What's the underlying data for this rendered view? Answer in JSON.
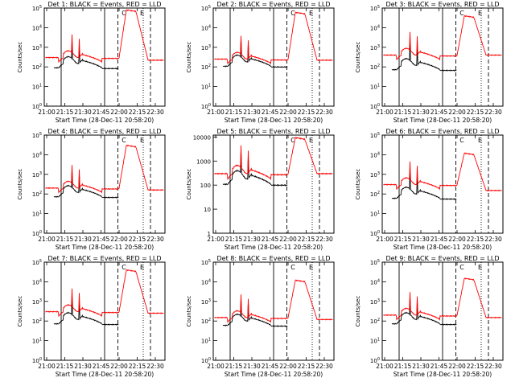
{
  "chart_data": [
    {
      "type": "line",
      "title": "Det 1: BLACK = Events, RED = LLD",
      "ylabel": "Counts/sec",
      "xlabel": "Start Time (28-Dec-11 20:58:20)",
      "x_ticks": [
        "21:00",
        "21:15",
        "21:30",
        "21:45",
        "22:00",
        "22:15",
        "22:30"
      ],
      "y_ticks": [
        "10^0",
        "10^1",
        "10^2",
        "10^3",
        "10^4",
        "10^5"
      ],
      "yscale": "log",
      "ylim": [
        1,
        100000
      ],
      "markers": [
        {
          "label": "C",
          "x": "22:00"
        },
        {
          "label": "E",
          "x": "22:15"
        }
      ],
      "series": [
        {
          "name": "Events",
          "color": "#000000"
        },
        {
          "name": "LLD",
          "color": "#ff0000"
        }
      ],
      "shape": {
        "black_base": 150,
        "red_base": 300,
        "peak": 80000,
        "tail": 220
      }
    },
    {
      "type": "line",
      "title": "Det 2: BLACK = Events, RED = LLD",
      "ylabel": "Counts/sec",
      "xlabel": "Start Time (28-Dec-11 20:58:20)",
      "x_ticks": [
        "21:00",
        "21:15",
        "21:30",
        "21:45",
        "22:00",
        "22:15",
        "22:30"
      ],
      "y_ticks": [
        "10^0",
        "10^1",
        "10^2",
        "10^3",
        "10^4",
        "10^5"
      ],
      "yscale": "log",
      "ylim": [
        1,
        100000
      ],
      "markers": [
        {
          "label": "C",
          "x": "22:00"
        },
        {
          "label": "E",
          "x": "22:15"
        }
      ],
      "series": [
        {
          "name": "Events",
          "color": "#000000"
        },
        {
          "name": "LLD",
          "color": "#ff0000"
        }
      ],
      "shape": {
        "black_base": 180,
        "red_base": 250,
        "peak": 60000,
        "tail": 220
      }
    },
    {
      "type": "line",
      "title": "Det 3: BLACK = Events, RED = LLD",
      "ylabel": "Counts/sec",
      "xlabel": "Start Time (28-Dec-11 20:58:20)",
      "x_ticks": [
        "21:00",
        "21:15",
        "21:30",
        "21:45",
        "22:00",
        "22:15",
        "22:30"
      ],
      "y_ticks": [
        "10^0",
        "10^1",
        "10^2",
        "10^3",
        "10^4",
        "10^5"
      ],
      "yscale": "log",
      "ylim": [
        1,
        100000
      ],
      "markers": [
        {
          "label": "C",
          "x": "22:00"
        },
        {
          "label": "E",
          "x": "22:15"
        }
      ],
      "series": [
        {
          "name": "Events",
          "color": "#000000"
        },
        {
          "name": "LLD",
          "color": "#ff0000"
        }
      ],
      "shape": {
        "black_base": 120,
        "red_base": 400,
        "peak": 40000,
        "tail": 400
      }
    },
    {
      "type": "line",
      "title": "Det 4: BLACK = Events, RED = LLD",
      "ylabel": "Counts/sec",
      "xlabel": "Start Time (28-Dec-11 20:58:20)",
      "x_ticks": [
        "21:00",
        "21:15",
        "21:30",
        "21:45",
        "22:00",
        "22:15",
        "22:30"
      ],
      "y_ticks": [
        "10^0",
        "10^1",
        "10^2",
        "10^3",
        "10^4",
        "10^5"
      ],
      "yscale": "log",
      "ylim": [
        1,
        100000
      ],
      "markers": [
        {
          "label": "C",
          "x": "22:00"
        },
        {
          "label": "E",
          "x": "22:15"
        }
      ],
      "series": [
        {
          "name": "Events",
          "color": "#000000"
        },
        {
          "name": "LLD",
          "color": "#ff0000"
        }
      ],
      "shape": {
        "black_base": 120,
        "red_base": 200,
        "peak": 30000,
        "tail": 160
      }
    },
    {
      "type": "line",
      "title": "Det 5: BLACK = Events, RED = LLD",
      "ylabel": "Counts/sec",
      "xlabel": "Start Time (28-Dec-11 20:58:20)",
      "x_ticks": [
        "21:00",
        "21:15",
        "21:30",
        "21:45",
        "22:00",
        "22:15",
        "22:30"
      ],
      "y_ticks": [
        "1",
        "10",
        "100",
        "1000",
        "10000"
      ],
      "yscale": "log",
      "ylim": [
        1,
        12000
      ],
      "markers": [
        {
          "label": "C",
          "x": "22:00"
        },
        {
          "label": "E",
          "x": "22:15"
        }
      ],
      "series": [
        {
          "name": "Events",
          "color": "#000000"
        },
        {
          "name": "LLD",
          "color": "#ff0000"
        }
      ],
      "shape": {
        "black_base": 180,
        "red_base": 300,
        "peak": 9500,
        "tail": 300
      }
    },
    {
      "type": "line",
      "title": "Det 6: BLACK = Events, RED = LLD",
      "ylabel": "Counts/sec",
      "xlabel": "Start Time (28-Dec-11 20:58:20)",
      "x_ticks": [
        "21:00",
        "21:15",
        "21:30",
        "21:45",
        "22:00",
        "22:15",
        "22:30"
      ],
      "y_ticks": [
        "10^0",
        "10^1",
        "10^2",
        "10^3",
        "10^4",
        "10^5"
      ],
      "yscale": "log",
      "ylim": [
        1,
        100000
      ],
      "markers": [
        {
          "label": "C",
          "x": "22:00"
        },
        {
          "label": "E",
          "x": "22:15"
        }
      ],
      "series": [
        {
          "name": "Events",
          "color": "#000000"
        },
        {
          "name": "LLD",
          "color": "#ff0000"
        }
      ],
      "shape": {
        "black_base": 100,
        "red_base": 300,
        "peak": 12000,
        "tail": 150
      }
    },
    {
      "type": "line",
      "title": "Det 7: BLACK = Events, RED = LLD",
      "ylabel": "Counts/sec",
      "xlabel": "Start Time (28-Dec-11 20:58:20)",
      "x_ticks": [
        "21:00",
        "21:15",
        "21:30",
        "21:45",
        "22:00",
        "22:15",
        "22:30"
      ],
      "y_ticks": [
        "10^0",
        "10^1",
        "10^2",
        "10^3",
        "10^4",
        "10^5"
      ],
      "yscale": "log",
      "ylim": [
        1,
        100000
      ],
      "markers": [
        {
          "label": "C",
          "x": "22:00"
        },
        {
          "label": "E",
          "x": "22:15"
        }
      ],
      "series": [
        {
          "name": "Events",
          "color": "#000000"
        },
        {
          "name": "LLD",
          "color": "#ff0000"
        }
      ],
      "shape": {
        "black_base": 120,
        "red_base": 300,
        "peak": 40000,
        "tail": 250
      }
    },
    {
      "type": "line",
      "title": "Det 8: BLACK = Events, RED = LLD",
      "ylabel": "Counts/sec",
      "xlabel": "Start Time (28-Dec-11 20:58:20)",
      "x_ticks": [
        "21:00",
        "21:15",
        "21:30",
        "21:45",
        "22:00",
        "22:15",
        "22:30"
      ],
      "y_ticks": [
        "10^0",
        "10^1",
        "10^2",
        "10^3",
        "10^4",
        "10^5"
      ],
      "yscale": "log",
      "ylim": [
        1,
        100000
      ],
      "markers": [
        {
          "label": "C",
          "x": "22:00"
        },
        {
          "label": "E",
          "x": "22:15"
        }
      ],
      "series": [
        {
          "name": "Events",
          "color": "#000000"
        },
        {
          "name": "LLD",
          "color": "#ff0000"
        }
      ],
      "shape": {
        "black_base": 100,
        "red_base": 150,
        "peak": 12000,
        "tail": 120
      }
    },
    {
      "type": "line",
      "title": "Det 9: BLACK = Events, RED = LLD",
      "ylabel": "Counts/sec",
      "xlabel": "Start Time (28-Dec-11 20:58:20)",
      "x_ticks": [
        "21:00",
        "21:15",
        "21:30",
        "21:45",
        "22:00",
        "22:15",
        "22:30"
      ],
      "y_ticks": [
        "10^0",
        "10^1",
        "10^2",
        "10^3",
        "10^4",
        "10^5"
      ],
      "yscale": "log",
      "ylim": [
        1,
        100000
      ],
      "markers": [
        {
          "label": "C",
          "x": "22:00"
        },
        {
          "label": "E",
          "x": "22:15"
        }
      ],
      "series": [
        {
          "name": "Events",
          "color": "#000000"
        },
        {
          "name": "LLD",
          "color": "#ff0000"
        }
      ],
      "shape": {
        "black_base": 120,
        "red_base": 200,
        "peak": 15000,
        "tail": 150
      }
    }
  ]
}
